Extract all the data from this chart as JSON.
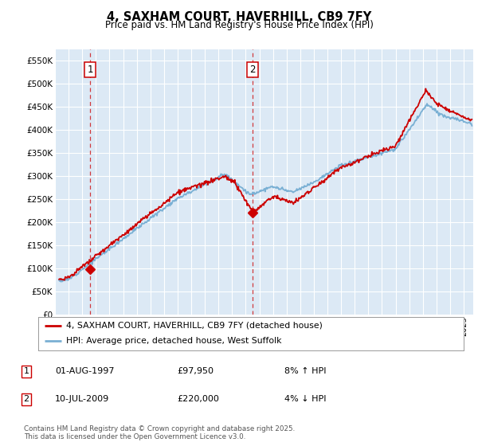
{
  "title": "4, SAXHAM COURT, HAVERHILL, CB9 7FY",
  "subtitle": "Price paid vs. HM Land Registry's House Price Index (HPI)",
  "ylim": [
    0,
    575000
  ],
  "xlim_start": 1995.3,
  "xlim_end": 2025.7,
  "background_color": "#dce9f5",
  "grid_color": "#ffffff",
  "red_line_color": "#cc0000",
  "blue_line_color": "#7ab0d4",
  "transaction1_x": 1997.58,
  "transaction1_y": 97950,
  "transaction2_x": 2009.52,
  "transaction2_y": 220000,
  "vline1_x": 1997.58,
  "vline2_x": 2009.52,
  "legend_label_red": "4, SAXHAM COURT, HAVERHILL, CB9 7FY (detached house)",
  "legend_label_blue": "HPI: Average price, detached house, West Suffolk",
  "table_entries": [
    {
      "num": "1",
      "date": "01-AUG-1997",
      "price": "£97,950",
      "hpi": "8% ↑ HPI"
    },
    {
      "num": "2",
      "date": "10-JUL-2009",
      "price": "£220,000",
      "hpi": "4% ↓ HPI"
    }
  ],
  "footnote": "Contains HM Land Registry data © Crown copyright and database right 2025.\nThis data is licensed under the Open Government Licence v3.0."
}
